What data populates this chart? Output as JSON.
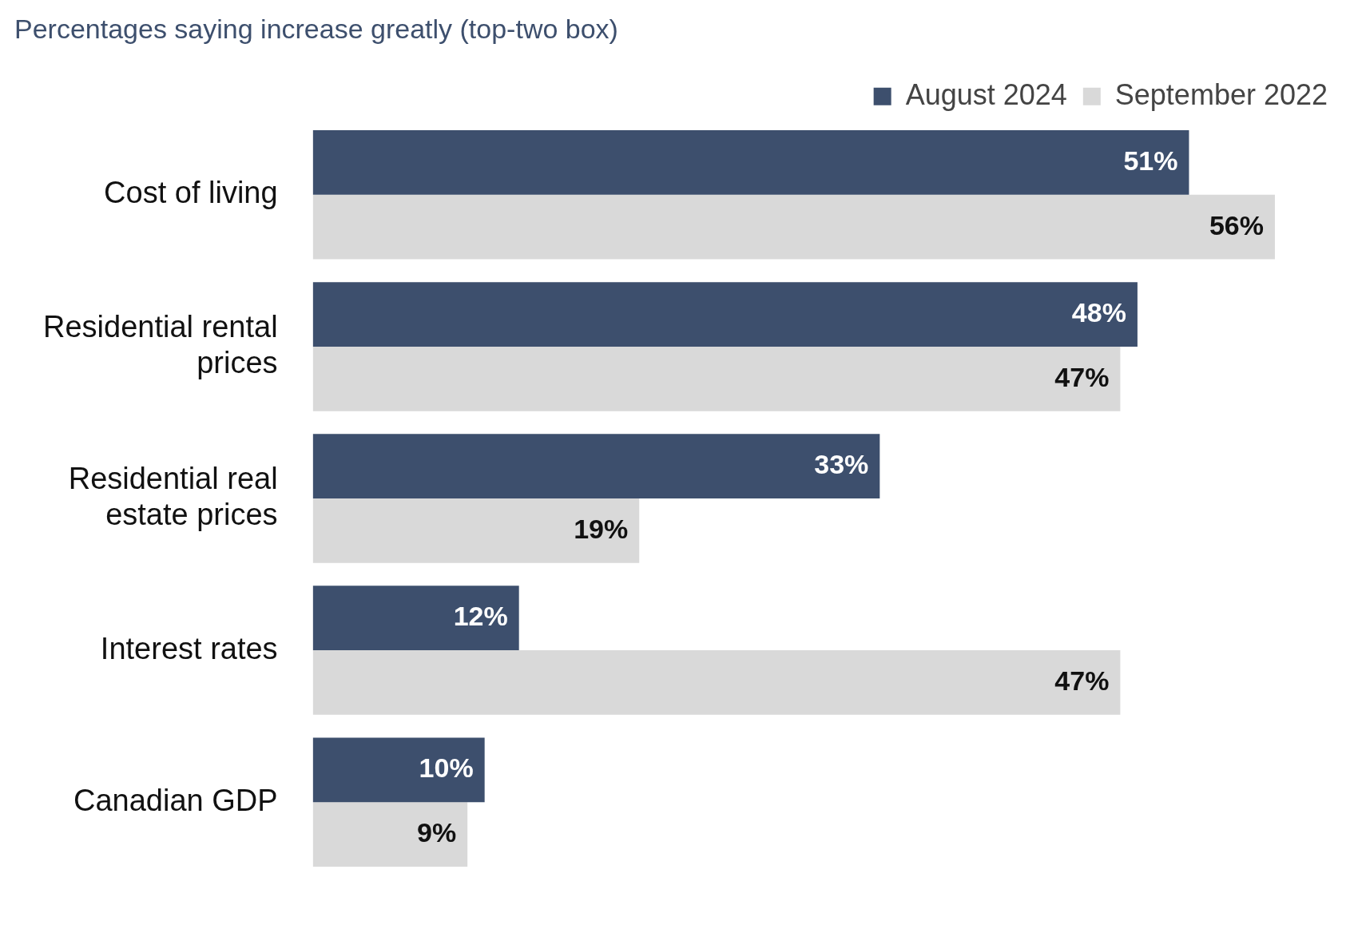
{
  "chart_data": {
    "type": "bar",
    "orientation": "horizontal",
    "title": "Percentages saying increase greatly (top-two box)",
    "categories": [
      "Cost of living",
      "Residential rental prices",
      "Residential real estate prices",
      "Interest rates",
      "Canadian GDP"
    ],
    "series": [
      {
        "name": "August 2024",
        "color": "#3d4f6d",
        "values": [
          51,
          48,
          33,
          12,
          10
        ],
        "value_labels": [
          "51%",
          "48%",
          "33%",
          "12%",
          "10%"
        ]
      },
      {
        "name": "September 2022",
        "color": "#d9d9d9",
        "values": [
          56,
          47,
          19,
          47,
          9
        ],
        "value_labels": [
          "56%",
          "47%",
          "19%",
          "47%",
          "9%"
        ]
      }
    ],
    "legend": "top right",
    "grid": false,
    "tick_labels": "y"
  }
}
